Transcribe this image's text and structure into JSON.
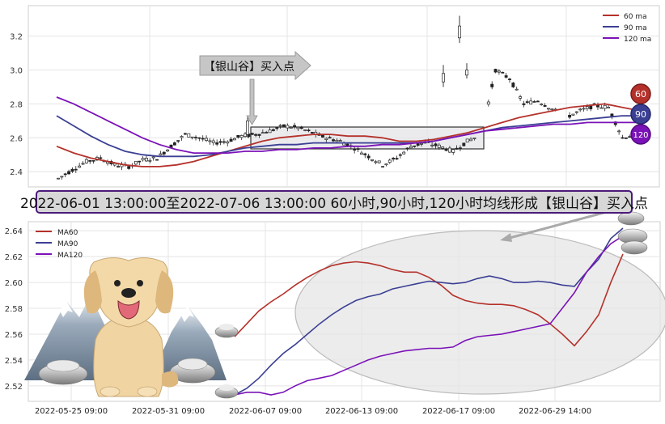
{
  "banner": "2022-06-01 13:00:00至2022-07-06 13:00:00 60小时,90小时,120小时均线形成【银山谷】买入点",
  "annotation": "【银山谷】买入点",
  "badges": [
    "60",
    "90",
    "120"
  ],
  "colors": {
    "ma60": "#b5312b",
    "ma90": "#3b3f94",
    "ma120": "#7b12b8",
    "badge60": "#b5312b",
    "badge90": "#3b3f94",
    "badge120": "#7b12b8"
  },
  "chart_data": [
    {
      "type": "line",
      "title": "",
      "ylim": [
        2.31,
        3.38
      ],
      "yticks": [
        2.4,
        2.6,
        2.8,
        3.0,
        3.2
      ],
      "ytick_labels": [
        "2.4",
        "2.6",
        "2.8",
        "3.0",
        "3.2"
      ],
      "legend": "top-right",
      "series": [
        {
          "name": "60 ma",
          "values": [
            2.55,
            2.51,
            2.48,
            2.46,
            2.44,
            2.43,
            2.43,
            2.44,
            2.46,
            2.49,
            2.52,
            2.55,
            2.58,
            2.6,
            2.61,
            2.62,
            2.62,
            2.61,
            2.61,
            2.6,
            2.58,
            2.58,
            2.59,
            2.61,
            2.63,
            2.66,
            2.69,
            2.72,
            2.74,
            2.76,
            2.78,
            2.79,
            2.8,
            2.78,
            2.76
          ]
        },
        {
          "name": "90 ma",
          "values": [
            2.73,
            2.67,
            2.61,
            2.56,
            2.52,
            2.5,
            2.49,
            2.49,
            2.49,
            2.5,
            2.52,
            2.54,
            2.55,
            2.56,
            2.56,
            2.57,
            2.57,
            2.57,
            2.57,
            2.57,
            2.57,
            2.57,
            2.58,
            2.6,
            2.62,
            2.64,
            2.66,
            2.67,
            2.68,
            2.69,
            2.7,
            2.71,
            2.72,
            2.73,
            2.73
          ]
        },
        {
          "name": "120 ma",
          "values": [
            2.84,
            2.8,
            2.75,
            2.7,
            2.65,
            2.6,
            2.56,
            2.53,
            2.51,
            2.51,
            2.51,
            2.52,
            2.52,
            2.53,
            2.53,
            2.54,
            2.54,
            2.55,
            2.55,
            2.56,
            2.56,
            2.57,
            2.58,
            2.6,
            2.62,
            2.64,
            2.65,
            2.66,
            2.67,
            2.68,
            2.68,
            2.69,
            2.69,
            2.69,
            2.69
          ]
        }
      ],
      "candles_close": [
        2.36,
        2.41,
        2.46,
        2.48,
        2.44,
        2.43,
        2.47,
        2.48,
        2.55,
        2.62,
        2.6,
        2.57,
        2.58,
        2.61,
        2.62,
        2.64,
        2.67,
        2.66,
        2.63,
        2.6,
        2.58,
        2.54,
        2.49,
        2.44,
        2.48,
        2.55,
        2.57,
        2.55,
        2.52,
        2.58,
        2.62,
        3.0,
        2.95,
        2.8,
        2.82,
        2.77,
        2.72,
        2.76,
        2.79,
        2.78,
        2.6,
        2.62
      ]
    },
    {
      "type": "line",
      "title": "",
      "x_tick_labels": [
        "2022-05-25 09:00",
        "2022-05-31 09:00",
        "2022-06-07 09:00",
        "2022-06-13 09:00",
        "2022-06-17 09:00",
        "2022-06-29 14:00"
      ],
      "ylim": [
        2.508,
        2.647
      ],
      "yticks": [
        2.52,
        2.54,
        2.56,
        2.58,
        2.6,
        2.62,
        2.64
      ],
      "ytick_labels": [
        "2.52",
        "2.54",
        "2.56",
        "2.58",
        "2.60",
        "2.62",
        "2.64"
      ],
      "legend": "top-left",
      "series": [
        {
          "name": "MA60",
          "values": [
            2.558,
            2.568,
            2.578,
            2.585,
            2.591,
            2.598,
            2.604,
            2.609,
            2.613,
            2.615,
            2.616,
            2.615,
            2.613,
            2.61,
            2.608,
            2.608,
            2.604,
            2.598,
            2.59,
            2.586,
            2.584,
            2.583,
            2.583,
            2.582,
            2.579,
            2.575,
            2.568,
            2.56,
            2.551,
            2.562,
            2.575,
            2.6,
            2.622
          ]
        },
        {
          "name": "MA90",
          "values": [
            2.513,
            2.518,
            2.526,
            2.536,
            2.545,
            2.552,
            2.56,
            2.568,
            2.575,
            2.581,
            2.586,
            2.589,
            2.591,
            2.595,
            2.597,
            2.599,
            2.601,
            2.6,
            2.599,
            2.6,
            2.603,
            2.605,
            2.603,
            2.6,
            2.6,
            2.601,
            2.6,
            2.598,
            2.597,
            2.608,
            2.618,
            2.634,
            2.642
          ]
        },
        {
          "name": "MA120",
          "values": [
            2.513,
            2.515,
            2.515,
            2.513,
            2.515,
            2.52,
            2.524,
            2.526,
            2.528,
            2.532,
            2.536,
            2.54,
            2.543,
            2.545,
            2.547,
            2.548,
            2.549,
            2.549,
            2.55,
            2.555,
            2.558,
            2.559,
            2.56,
            2.562,
            2.564,
            2.566,
            2.568,
            2.58,
            2.592,
            2.608,
            2.62,
            2.63,
            2.636
          ]
        }
      ]
    }
  ]
}
